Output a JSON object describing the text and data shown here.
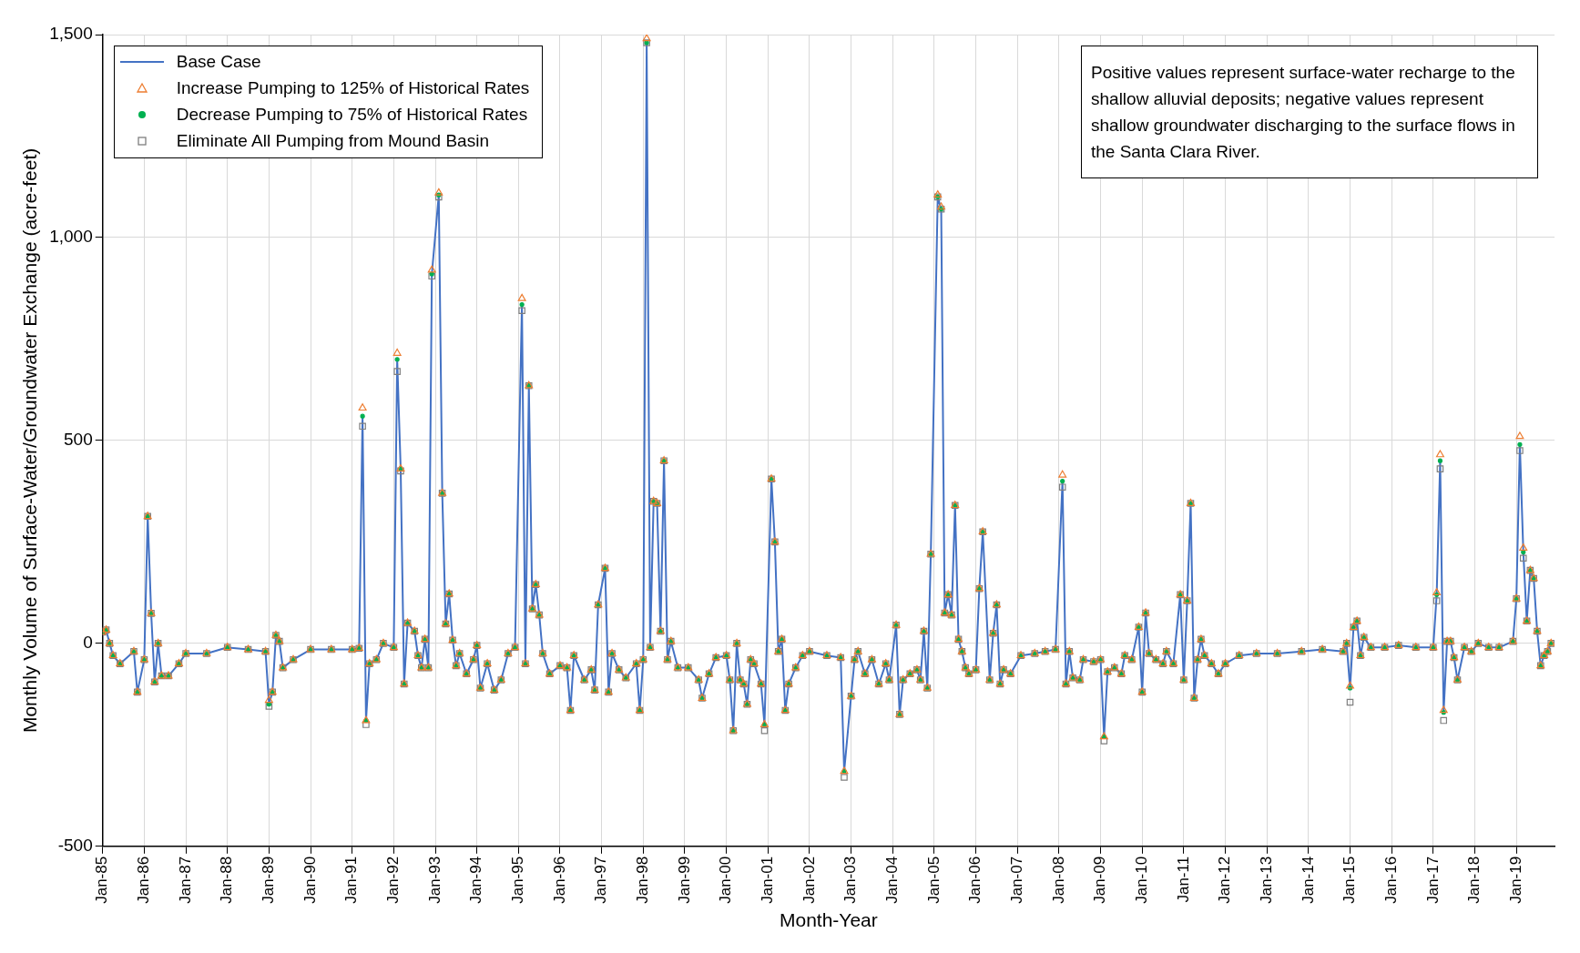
{
  "chart_data": {
    "type": "line",
    "xlabel": "Month-Year",
    "ylabel": "Monthly Volume of Surface-Water/Groundwater Exchange (acre-feet)",
    "annotations": [
      "Positive values represent surface-water recharge to the shallow alluvial deposits; negative values represent shallow groundwater discharging to the surface flows in the Santa Clara River."
    ],
    "xlim": [
      "1985-01",
      "2019-12"
    ],
    "ylim": [
      -500,
      1500
    ],
    "xticks": [
      {
        "value": "1985-01",
        "label": "Jan-85"
      },
      {
        "value": "1986-01",
        "label": "Jan-86"
      },
      {
        "value": "1987-01",
        "label": "Jan-87"
      },
      {
        "value": "1988-01",
        "label": "Jan-88"
      },
      {
        "value": "1989-01",
        "label": "Jan-89"
      },
      {
        "value": "1990-01",
        "label": "Jan-90"
      },
      {
        "value": "1991-01",
        "label": "Jan-91"
      },
      {
        "value": "1992-01",
        "label": "Jan-92"
      },
      {
        "value": "1993-01",
        "label": "Jan-93"
      },
      {
        "value": "1994-01",
        "label": "Jan-94"
      },
      {
        "value": "1995-01",
        "label": "Jan-95"
      },
      {
        "value": "1996-01",
        "label": "Jan-96"
      },
      {
        "value": "1997-01",
        "label": "Jan-97"
      },
      {
        "value": "1998-01",
        "label": "Jan-98"
      },
      {
        "value": "1999-01",
        "label": "Jan-99"
      },
      {
        "value": "2000-01",
        "label": "Jan-00"
      },
      {
        "value": "2001-01",
        "label": "Jan-01"
      },
      {
        "value": "2002-01",
        "label": "Jan-02"
      },
      {
        "value": "2003-01",
        "label": "Jan-03"
      },
      {
        "value": "2004-01",
        "label": "Jan-04"
      },
      {
        "value": "2005-01",
        "label": "Jan-05"
      },
      {
        "value": "2006-01",
        "label": "Jan-06"
      },
      {
        "value": "2007-01",
        "label": "Jan-07"
      },
      {
        "value": "2008-01",
        "label": "Jan-08"
      },
      {
        "value": "2009-01",
        "label": "Jan-09"
      },
      {
        "value": "2010-01",
        "label": "Jan-10"
      },
      {
        "value": "2011-01",
        "label": "Jan-11"
      },
      {
        "value": "2012-01",
        "label": "Jan-12"
      },
      {
        "value": "2013-01",
        "label": "Jan-13"
      },
      {
        "value": "2014-01",
        "label": "Jan-14"
      },
      {
        "value": "2015-01",
        "label": "Jan-15"
      },
      {
        "value": "2016-01",
        "label": "Jan-16"
      },
      {
        "value": "2017-01",
        "label": "Jan-17"
      },
      {
        "value": "2018-01",
        "label": "Jan-18"
      },
      {
        "value": "2019-01",
        "label": "Jan-19"
      }
    ],
    "yticks": [
      -500,
      0,
      500,
      {
        "value": 1000,
        "label": "1,000"
      },
      {
        "value": 1500,
        "label": "1,500"
      }
    ],
    "grid": true,
    "legend": "top left",
    "x": [
      "1985-01",
      "1985-02",
      "1985-03",
      "1985-04",
      "1985-06",
      "1985-10",
      "1985-11",
      "1986-01",
      "1986-02",
      "1986-03",
      "1986-04",
      "1986-05",
      "1986-06",
      "1986-08",
      "1986-11",
      "1987-01",
      "1987-07",
      "1988-01",
      "1988-07",
      "1988-12",
      "1989-01",
      "1989-02",
      "1989-03",
      "1989-04",
      "1989-05",
      "1989-08",
      "1990-01",
      "1990-07",
      "1991-01",
      "1991-03",
      "1991-04",
      "1991-05",
      "1991-06",
      "1991-08",
      "1991-10",
      "1992-01",
      "1992-02",
      "1992-03",
      "1992-04",
      "1992-05",
      "1992-07",
      "1992-08",
      "1992-09",
      "1992-10",
      "1992-11",
      "1992-12",
      "1993-02",
      "1993-03",
      "1993-04",
      "1993-05",
      "1993-06",
      "1993-07",
      "1993-08",
      "1993-10",
      "1993-12",
      "1994-01",
      "1994-02",
      "1994-04",
      "1994-06",
      "1994-08",
      "1994-10",
      "1994-12",
      "1995-02",
      "1995-03",
      "1995-04",
      "1995-05",
      "1995-06",
      "1995-07",
      "1995-08",
      "1995-10",
      "1996-01",
      "1996-03",
      "1996-04",
      "1996-05",
      "1996-08",
      "1996-10",
      "1996-11",
      "1996-12",
      "1997-02",
      "1997-03",
      "1997-04",
      "1997-06",
      "1997-08",
      "1997-11",
      "1997-12",
      "1998-01",
      "1998-02",
      "1998-03",
      "1998-04",
      "1998-05",
      "1998-06",
      "1998-07",
      "1998-08",
      "1998-09",
      "1998-11",
      "1999-02",
      "1999-05",
      "1999-06",
      "1999-08",
      "1999-10",
      "2000-01",
      "2000-02",
      "2000-03",
      "2000-04",
      "2000-05",
      "2000-06",
      "2000-07",
      "2000-08",
      "2000-09",
      "2000-11",
      "2000-12",
      "2001-02",
      "2001-03",
      "2001-04",
      "2001-05",
      "2001-06",
      "2001-07",
      "2001-09",
      "2001-11",
      "2002-01",
      "2002-06",
      "2002-10",
      "2002-11",
      "2003-01",
      "2003-02",
      "2003-03",
      "2003-05",
      "2003-07",
      "2003-09",
      "2003-11",
      "2003-12",
      "2004-02",
      "2004-03",
      "2004-04",
      "2004-06",
      "2004-08",
      "2004-09",
      "2004-10",
      "2004-11",
      "2004-12",
      "2005-02",
      "2005-03",
      "2005-04",
      "2005-05",
      "2005-06",
      "2005-07",
      "2005-08",
      "2005-09",
      "2005-10",
      "2005-11",
      "2006-01",
      "2006-02",
      "2006-03",
      "2006-05",
      "2006-06",
      "2006-07",
      "2006-08",
      "2006-09",
      "2006-11",
      "2007-02",
      "2007-06",
      "2007-09",
      "2007-12",
      "2008-02",
      "2008-03",
      "2008-04",
      "2008-05",
      "2008-07",
      "2008-08",
      "2008-11",
      "2009-01",
      "2009-02",
      "2009-03",
      "2009-05",
      "2009-07",
      "2009-08",
      "2009-10",
      "2009-12",
      "2010-01",
      "2010-02",
      "2010-03",
      "2010-05",
      "2010-07",
      "2010-08",
      "2010-10",
      "2010-12",
      "2011-01",
      "2011-02",
      "2011-03",
      "2011-04",
      "2011-05",
      "2011-06",
      "2011-07",
      "2011-09",
      "2011-11",
      "2012-01",
      "2012-05",
      "2012-10",
      "2013-04",
      "2013-11",
      "2014-05",
      "2014-11",
      "2014-12",
      "2015-01",
      "2015-02",
      "2015-03",
      "2015-04",
      "2015-05",
      "2015-07",
      "2015-11",
      "2016-03",
      "2016-08",
      "2017-01",
      "2017-02",
      "2017-03",
      "2017-04",
      "2017-05",
      "2017-06",
      "2017-07",
      "2017-08",
      "2017-10",
      "2017-12",
      "2018-02",
      "2018-05",
      "2018-08",
      "2018-12",
      "2019-01",
      "2019-02",
      "2019-03",
      "2019-04",
      "2019-05",
      "2019-06",
      "2019-07",
      "2019-08",
      "2019-09",
      "2019-10",
      "2019-11"
    ],
    "series": [
      {
        "name": "Base Case",
        "type": "line",
        "marker": "none",
        "line_style": "solid",
        "color": "#4472c4",
        "values": [
          28,
          33,
          0,
          -30,
          -50,
          -20,
          -120,
          -40,
          313,
          74,
          -95,
          0,
          -80,
          -80,
          -50,
          -25,
          -25,
          -10,
          -15,
          -20,
          -150,
          -120,
          20,
          5,
          -60,
          -40,
          -15,
          -15,
          -15,
          -12,
          560,
          -190,
          -50,
          -40,
          0,
          -10,
          700,
          430,
          -100,
          50,
          30,
          -30,
          -60,
          10,
          -60,
          910,
          1105,
          370,
          48,
          122,
          8,
          -55,
          -25,
          -75,
          -40,
          -5,
          -110,
          -50,
          -115,
          -90,
          -25,
          -10,
          835,
          -50,
          635,
          85,
          145,
          70,
          -25,
          -75,
          -55,
          -60,
          -165,
          -30,
          -90,
          -65,
          -115,
          95,
          185,
          -120,
          -25,
          -65,
          -85,
          -50,
          -165,
          -40,
          1480,
          -10,
          350,
          345,
          30,
          450,
          -40,
          5,
          -60,
          -60,
          -90,
          -135,
          -75,
          -35,
          -30,
          -90,
          -215,
          0,
          -90,
          -100,
          -150,
          -40,
          -50,
          -100,
          -200,
          405,
          250,
          -20,
          10,
          -165,
          -100,
          -60,
          -30,
          -20,
          -30,
          -35,
          -315,
          -130,
          -40,
          -20,
          -75,
          -40,
          -100,
          -50,
          -90,
          45,
          -175,
          -90,
          -75,
          -65,
          -90,
          30,
          -110,
          220,
          1100,
          1070,
          75,
          120,
          70,
          340,
          10,
          -20,
          -60,
          -75,
          -65,
          135,
          275,
          -90,
          25,
          95,
          -100,
          -65,
          -75,
          -30,
          -25,
          -20,
          -15,
          400,
          -100,
          -20,
          -85,
          -90,
          -40,
          -45,
          -40,
          -230,
          -70,
          -60,
          -75,
          -30,
          -40,
          40,
          -120,
          75,
          -25,
          -40,
          -50,
          -20,
          -50,
          120,
          -90,
          105,
          345,
          -135,
          -40,
          10,
          -30,
          -50,
          -75,
          -50,
          -30,
          -25,
          -25,
          -20,
          -15,
          -20,
          0,
          -110,
          40,
          55,
          -30,
          15,
          -10,
          -10,
          -5,
          -10,
          -10,
          120,
          450,
          -170,
          5,
          5,
          -35,
          -90,
          -10,
          -20,
          0,
          -10,
          -10,
          5,
          110,
          490,
          225,
          55,
          180,
          160,
          30,
          -55,
          -30,
          -20,
          0
        ]
      },
      {
        "name": "Increase Pumping to 125% of Historical Rates",
        "type": "scatter",
        "marker": "triangle",
        "color": "#ed7d31",
        "values": [
          28,
          33,
          0,
          -30,
          -50,
          -20,
          -120,
          -40,
          313,
          74,
          -95,
          0,
          -80,
          -80,
          -50,
          -25,
          -25,
          -10,
          -15,
          -20,
          -140,
          -120,
          20,
          5,
          -60,
          -40,
          -15,
          -15,
          -15,
          -12,
          580,
          -190,
          -50,
          -40,
          0,
          -10,
          715,
          430,
          -100,
          50,
          30,
          -30,
          -60,
          10,
          -60,
          920,
          1110,
          370,
          48,
          122,
          8,
          -55,
          -25,
          -75,
          -40,
          -5,
          -110,
          -50,
          -115,
          -90,
          -25,
          -10,
          850,
          -50,
          635,
          85,
          145,
          70,
          -25,
          -75,
          -55,
          -60,
          -165,
          -30,
          -90,
          -65,
          -115,
          95,
          185,
          -120,
          -25,
          -65,
          -85,
          -50,
          -165,
          -40,
          1490,
          -10,
          350,
          345,
          30,
          450,
          -40,
          5,
          -60,
          -60,
          -90,
          -135,
          -75,
          -35,
          -30,
          -90,
          -215,
          0,
          -90,
          -100,
          -150,
          -40,
          -50,
          -100,
          -200,
          405,
          250,
          -20,
          10,
          -165,
          -100,
          -60,
          -30,
          -20,
          -30,
          -35,
          -315,
          -130,
          -40,
          -20,
          -75,
          -40,
          -100,
          -50,
          -90,
          45,
          -175,
          -90,
          -75,
          -65,
          -90,
          30,
          -110,
          220,
          1105,
          1075,
          75,
          120,
          70,
          340,
          10,
          -20,
          -60,
          -75,
          -65,
          135,
          275,
          -90,
          25,
          95,
          -100,
          -65,
          -75,
          -30,
          -25,
          -20,
          -15,
          415,
          -100,
          -20,
          -85,
          -90,
          -40,
          -45,
          -40,
          -230,
          -70,
          -60,
          -75,
          -30,
          -40,
          40,
          -120,
          75,
          -25,
          -40,
          -50,
          -20,
          -50,
          120,
          -90,
          105,
          345,
          -135,
          -40,
          10,
          -30,
          -50,
          -75,
          -50,
          -30,
          -25,
          -25,
          -20,
          -15,
          -20,
          0,
          -105,
          40,
          55,
          -30,
          15,
          -10,
          -10,
          -5,
          -10,
          -10,
          125,
          465,
          -165,
          5,
          5,
          -35,
          -90,
          -10,
          -20,
          0,
          -10,
          -10,
          5,
          110,
          510,
          235,
          55,
          180,
          160,
          30,
          -55,
          -30,
          -20,
          0
        ]
      },
      {
        "name": "Decrease Pumping to 75% of Historical Rates",
        "type": "scatter",
        "marker": "circle",
        "color": "#00b050",
        "values": [
          28,
          33,
          0,
          -30,
          -50,
          -20,
          -120,
          -40,
          313,
          74,
          -95,
          0,
          -80,
          -80,
          -50,
          -25,
          -25,
          -10,
          -15,
          -20,
          -150,
          -120,
          20,
          5,
          -60,
          -40,
          -15,
          -15,
          -15,
          -12,
          560,
          -190,
          -50,
          -40,
          0,
          -10,
          700,
          430,
          -100,
          50,
          30,
          -30,
          -60,
          10,
          -60,
          910,
          1105,
          370,
          48,
          122,
          8,
          -55,
          -25,
          -75,
          -40,
          -5,
          -110,
          -50,
          -115,
          -90,
          -25,
          -10,
          835,
          -50,
          635,
          85,
          145,
          70,
          -25,
          -75,
          -55,
          -60,
          -165,
          -30,
          -90,
          -65,
          -115,
          95,
          185,
          -120,
          -25,
          -65,
          -85,
          -50,
          -165,
          -40,
          1480,
          -10,
          350,
          345,
          30,
          450,
          -40,
          5,
          -60,
          -60,
          -90,
          -135,
          -75,
          -35,
          -30,
          -90,
          -215,
          0,
          -90,
          -100,
          -150,
          -40,
          -50,
          -100,
          -200,
          405,
          250,
          -20,
          10,
          -165,
          -100,
          -60,
          -30,
          -20,
          -30,
          -35,
          -315,
          -130,
          -40,
          -20,
          -75,
          -40,
          -100,
          -50,
          -90,
          45,
          -175,
          -90,
          -75,
          -65,
          -90,
          30,
          -110,
          220,
          1100,
          1070,
          75,
          120,
          70,
          340,
          10,
          -20,
          -60,
          -75,
          -65,
          135,
          275,
          -90,
          25,
          95,
          -100,
          -65,
          -75,
          -30,
          -25,
          -20,
          -15,
          400,
          -100,
          -20,
          -85,
          -90,
          -40,
          -45,
          -40,
          -230,
          -70,
          -60,
          -75,
          -30,
          -40,
          40,
          -120,
          75,
          -25,
          -40,
          -50,
          -20,
          -50,
          120,
          -90,
          105,
          345,
          -135,
          -40,
          10,
          -30,
          -50,
          -75,
          -50,
          -30,
          -25,
          -25,
          -20,
          -15,
          -20,
          0,
          -110,
          40,
          55,
          -30,
          15,
          -10,
          -10,
          -5,
          -10,
          -10,
          120,
          450,
          -170,
          5,
          5,
          -35,
          -90,
          -10,
          -20,
          0,
          -10,
          -10,
          5,
          110,
          490,
          225,
          55,
          180,
          160,
          30,
          -55,
          -30,
          -20,
          0
        ]
      },
      {
        "name": "Eliminate All Pumping from Mound Basin",
        "type": "scatter",
        "marker": "square",
        "color": "#7f7f7f",
        "values": [
          28,
          33,
          0,
          -30,
          -50,
          -20,
          -120,
          -40,
          313,
          74,
          -95,
          0,
          -80,
          -80,
          -50,
          -25,
          -25,
          -10,
          -15,
          -20,
          -155,
          -120,
          20,
          5,
          -60,
          -40,
          -15,
          -15,
          -15,
          -12,
          535,
          -200,
          -50,
          -40,
          0,
          -10,
          670,
          425,
          -100,
          50,
          30,
          -30,
          -60,
          10,
          -60,
          905,
          1100,
          370,
          48,
          122,
          8,
          -55,
          -25,
          -75,
          -40,
          -5,
          -110,
          -50,
          -115,
          -90,
          -25,
          -10,
          820,
          -50,
          635,
          85,
          145,
          70,
          -25,
          -75,
          -55,
          -60,
          -165,
          -30,
          -90,
          -65,
          -115,
          95,
          185,
          -120,
          -25,
          -65,
          -85,
          -50,
          -165,
          -40,
          1480,
          -10,
          350,
          345,
          30,
          450,
          -40,
          5,
          -60,
          -60,
          -90,
          -135,
          -75,
          -35,
          -30,
          -90,
          -215,
          0,
          -90,
          -100,
          -150,
          -40,
          -50,
          -100,
          -215,
          405,
          250,
          -20,
          10,
          -165,
          -100,
          -60,
          -30,
          -20,
          -30,
          -35,
          -330,
          -130,
          -40,
          -20,
          -75,
          -40,
          -100,
          -50,
          -90,
          45,
          -175,
          -90,
          -75,
          -65,
          -90,
          30,
          -110,
          220,
          1100,
          1070,
          75,
          120,
          70,
          340,
          10,
          -20,
          -60,
          -75,
          -65,
          135,
          275,
          -90,
          25,
          95,
          -100,
          -65,
          -75,
          -30,
          -25,
          -20,
          -15,
          385,
          -100,
          -20,
          -85,
          -90,
          -40,
          -45,
          -40,
          -240,
          -70,
          -60,
          -75,
          -30,
          -40,
          40,
          -120,
          75,
          -25,
          -40,
          -50,
          -20,
          -50,
          120,
          -90,
          105,
          345,
          -135,
          -40,
          10,
          -30,
          -50,
          -75,
          -50,
          -30,
          -25,
          -25,
          -20,
          -15,
          -20,
          0,
          -145,
          40,
          55,
          -30,
          15,
          -10,
          -10,
          -5,
          -10,
          -10,
          105,
          430,
          -190,
          5,
          5,
          -35,
          -90,
          -10,
          -20,
          0,
          -10,
          -10,
          5,
          110,
          475,
          210,
          55,
          180,
          160,
          30,
          -55,
          -30,
          -20,
          0
        ]
      }
    ]
  }
}
